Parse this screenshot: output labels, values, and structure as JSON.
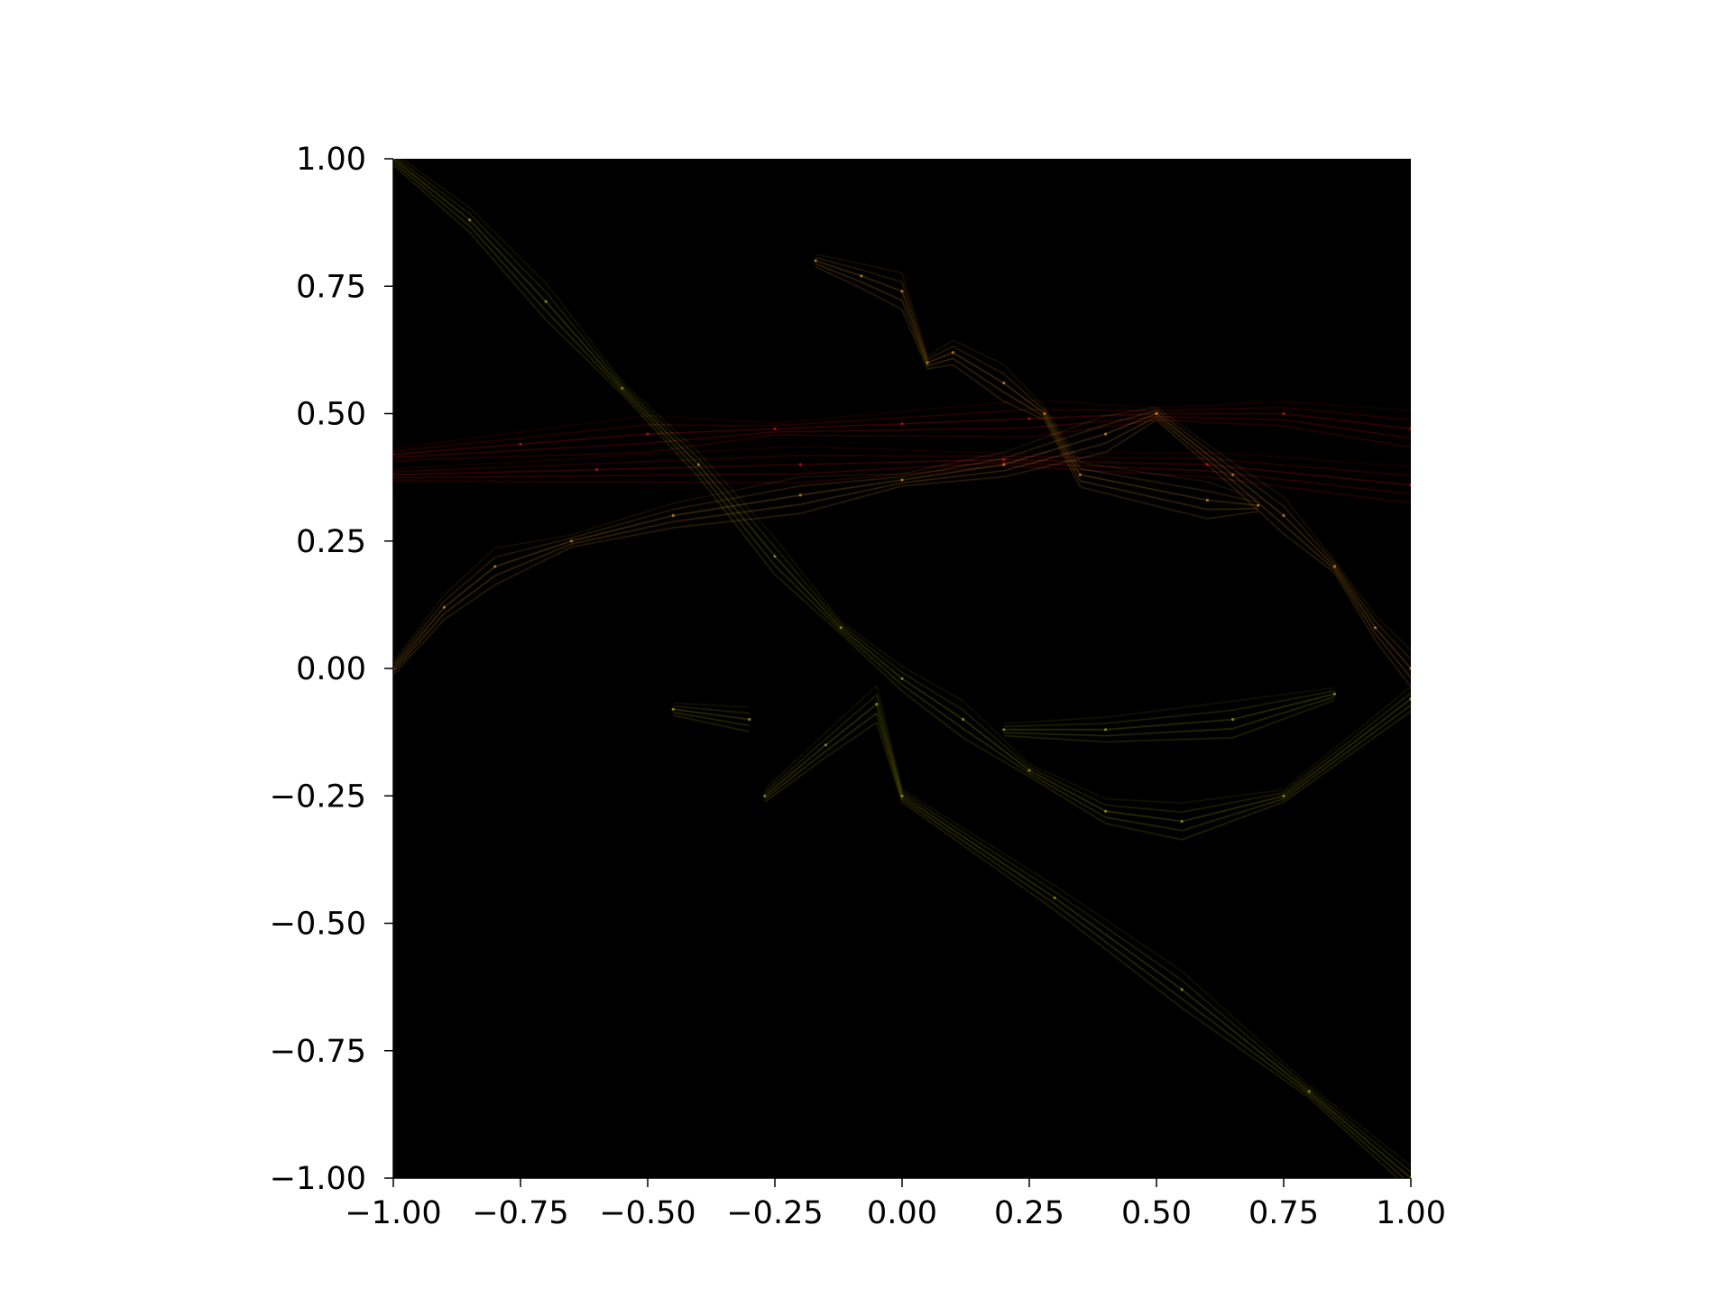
{
  "chart_data": {
    "type": "scatter",
    "title": "",
    "xlabel": "",
    "ylabel": "",
    "xlim": [
      -1.0,
      1.0
    ],
    "ylim": [
      -1.0,
      1.0
    ],
    "grid": false,
    "legend": "none",
    "background": "#000000",
    "x_ticks": [
      "−1.00",
      "−0.75",
      "−0.50",
      "−0.25",
      "0.00",
      "0.25",
      "0.50",
      "0.75",
      "1.00"
    ],
    "y_ticks": [
      "1.00",
      "0.75",
      "0.50",
      "0.25",
      "0.00",
      "−0.25",
      "−0.50",
      "−0.75",
      "−1.00"
    ],
    "x_tick_values": [
      -1.0,
      -0.75,
      -0.5,
      -0.25,
      0.0,
      0.25,
      0.5,
      0.75,
      1.0
    ],
    "y_tick_values": [
      1.0,
      0.75,
      0.5,
      0.25,
      0.0,
      -0.25,
      -0.5,
      -0.75,
      -1.0
    ],
    "series": [
      {
        "color": "#c8101a",
        "points": [
          [
            -1.0,
            0.42
          ],
          [
            -0.75,
            0.44
          ],
          [
            -0.5,
            0.46
          ],
          [
            -0.25,
            0.47
          ],
          [
            0.0,
            0.48
          ],
          [
            0.25,
            0.49
          ],
          [
            0.5,
            0.5
          ],
          [
            0.75,
            0.5
          ],
          [
            1.0,
            0.47
          ],
          [
            -1.0,
            0.38
          ],
          [
            -0.6,
            0.39
          ],
          [
            -0.2,
            0.4
          ],
          [
            0.2,
            0.41
          ],
          [
            0.6,
            0.4
          ],
          [
            1.0,
            0.36
          ]
        ]
      },
      {
        "color": "#c8871f",
        "points": [
          [
            -1.0,
            0.0
          ],
          [
            -0.9,
            0.12
          ],
          [
            -0.8,
            0.2
          ],
          [
            -0.65,
            0.25
          ],
          [
            -0.45,
            0.3
          ],
          [
            -0.2,
            0.34
          ],
          [
            0.0,
            0.37
          ],
          [
            0.2,
            0.4
          ],
          [
            0.4,
            0.46
          ],
          [
            0.5,
            0.5
          ],
          [
            0.65,
            0.38
          ],
          [
            0.75,
            0.3
          ],
          [
            0.85,
            0.2
          ],
          [
            0.93,
            0.08
          ],
          [
            1.0,
            0.0
          ],
          [
            -0.17,
            0.8
          ],
          [
            -0.08,
            0.77
          ],
          [
            0.0,
            0.74
          ],
          [
            0.05,
            0.6
          ],
          [
            0.1,
            0.62
          ],
          [
            0.2,
            0.56
          ],
          [
            0.28,
            0.5
          ],
          [
            0.35,
            0.38
          ],
          [
            0.6,
            0.33
          ],
          [
            0.7,
            0.32
          ]
        ]
      },
      {
        "color": "#9a9a10",
        "points": [
          [
            -1.0,
            1.0
          ],
          [
            -0.85,
            0.88
          ],
          [
            -0.7,
            0.72
          ],
          [
            -0.55,
            0.55
          ],
          [
            -0.4,
            0.4
          ],
          [
            -0.25,
            0.22
          ],
          [
            -0.12,
            0.08
          ],
          [
            0.0,
            -0.02
          ],
          [
            0.12,
            -0.1
          ],
          [
            0.25,
            -0.2
          ],
          [
            0.4,
            -0.28
          ],
          [
            0.55,
            -0.3
          ],
          [
            0.75,
            -0.25
          ],
          [
            1.0,
            -0.06
          ],
          [
            -0.27,
            -0.25
          ],
          [
            -0.15,
            -0.15
          ],
          [
            -0.05,
            -0.07
          ],
          [
            0.0,
            -0.25
          ],
          [
            0.3,
            -0.45
          ],
          [
            0.55,
            -0.63
          ],
          [
            0.8,
            -0.83
          ],
          [
            1.0,
            -1.0
          ],
          [
            0.2,
            -0.12
          ],
          [
            0.4,
            -0.12
          ],
          [
            0.65,
            -0.1
          ],
          [
            0.85,
            -0.05
          ],
          [
            -0.45,
            -0.08
          ],
          [
            -0.3,
            -0.1
          ]
        ]
      }
    ]
  }
}
